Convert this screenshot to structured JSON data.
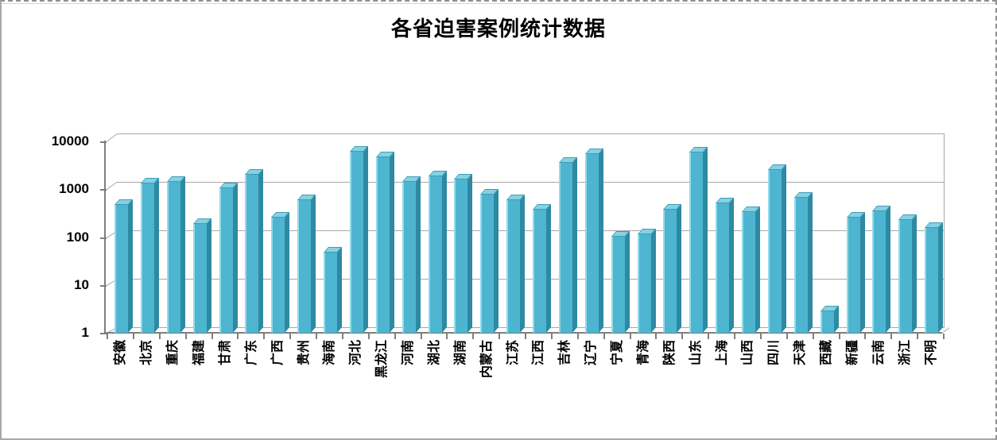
{
  "chart_data": {
    "type": "bar",
    "title": "各省迫害案例统计数据",
    "xlabel": "",
    "ylabel": "",
    "y_scale": "log",
    "ylim": [
      1,
      10000
    ],
    "ytick_labels": [
      "1",
      "10",
      "100",
      "1000",
      "10000"
    ],
    "grid": true,
    "legend": false,
    "style": "3d-column",
    "categories": [
      "安徽",
      "北京",
      "重庆",
      "福建",
      "甘肃",
      "广东",
      "广西",
      "贵州",
      "海南",
      "河北",
      "黑龙江",
      "河南",
      "湖北",
      "湖南",
      "内蒙古",
      "江苏",
      "江西",
      "吉林",
      "辽宁",
      "宁夏",
      "青海",
      "陕西",
      "山东",
      "上海",
      "山西",
      "四川",
      "天津",
      "西藏",
      "新疆",
      "云南",
      "浙江",
      "不明"
    ],
    "values": [
      450,
      1200,
      1300,
      180,
      950,
      1800,
      240,
      550,
      47,
      5300,
      4100,
      1300,
      1700,
      1450,
      720,
      550,
      360,
      3200,
      4800,
      100,
      110,
      360,
      5200,
      480,
      320,
      2300,
      620,
      3,
      240,
      330,
      220,
      150
    ],
    "colors": {
      "bar_front": "#4eb5d1",
      "bar_side": "#2e89a2",
      "bar_top": "#85d2e2",
      "bar_highlight": "#93dbe9",
      "bar_edge": "#3f9cb6",
      "gridline": "#a9a9a9",
      "axis": "#7f7f7f",
      "text": "#000000",
      "background": "#ffffff"
    }
  }
}
